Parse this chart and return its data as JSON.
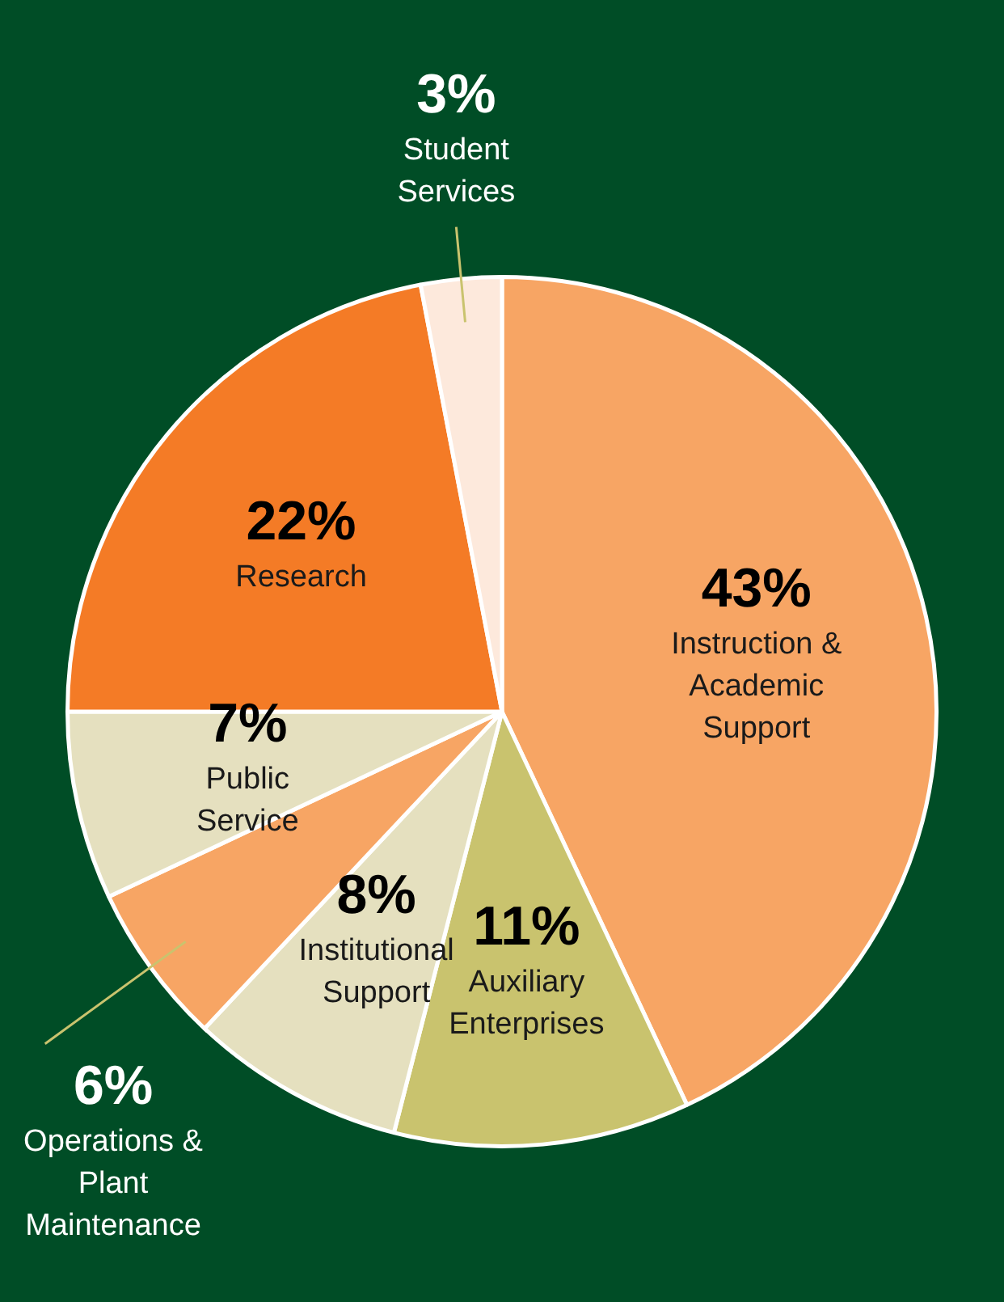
{
  "chart_data": {
    "type": "pie",
    "categories": [
      "Instruction & Academic Support",
      "Auxiliary Enterprises",
      "Institutional Support",
      "Operations & Plant Maintenance",
      "Public Service",
      "Research",
      "Student Services"
    ],
    "values": [
      43,
      11,
      8,
      6,
      7,
      22,
      3
    ],
    "colors": [
      "#f7a564",
      "#c9c36e",
      "#e5e0bf",
      "#f7a564",
      "#e5e0bf",
      "#f47b26",
      "#fde9dc"
    ],
    "value_labels": [
      "43%",
      "11%",
      "8%",
      "6%",
      "7%",
      "22%",
      "3%"
    ]
  }
}
